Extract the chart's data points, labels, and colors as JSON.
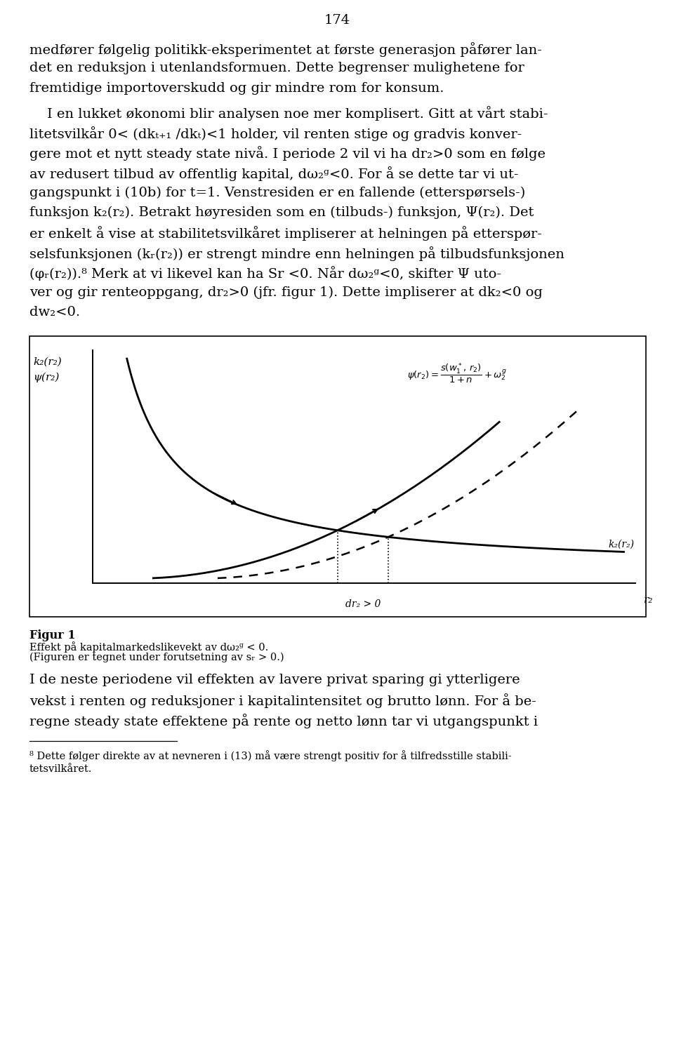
{
  "page_number": "174",
  "background_color": "#ffffff",
  "text_color": "#000000",
  "para1_lines": [
    "medfører følgelig politikk-eksperimentet at første generasjon påfører lan-",
    "det en reduksjon i utenlandsformuen. Dette begrenser mulighetene for",
    "fremtidige importoverskudd og gir mindre rom for konsum."
  ],
  "para2_lines": [
    "    I en lukket økonomi blir analysen noe mer komplisert. Gitt at vårt stabi-",
    "litetsvilkår 0< (dkₜ₊₁ /dkₜ)<1 holder, vil renten stige og gradvis konver-",
    "gere mot et nytt steady state nivå. I periode 2 vil vi ha dr₂>0 som en følge",
    "av redusert tilbud av offentlig kapital, dω₂ᵍ<0. For å se dette tar vi ut-",
    "gangspunkt i (10b) for t=1. Venstresiden er en fallende (etterspørsels-)",
    "funksjon k₂(r₂). Betrakt høyresiden som en (tilbuds-) funksjon, Ψ(r₂). Det",
    "er enkelt å vise at stabilitetsvilkåret impliserer at helningen på etterspør-",
    "selsfunksjonen (kᵣ(r₂)) er strengt mindre enn helningen på tilbudsfunksjonen",
    "(φᵣ(r₂)).⁸ Merk at vi likevel kan ha Sr <0. Når dω₂ᵍ<0, skifter Ψ uto-",
    "ver og gir renteoppgang, dr₂>0 (jfr. figur 1). Dette impliserer at dk₂<0 og",
    "dw₂<0."
  ],
  "para3_lines": [
    "I de neste periodene vil effekten av lavere privat sparing gi ytterligere",
    "vekst i renten og reduksjoner i kapitalintensitet og brutto lønn. For å be-",
    "regne steady state effektene på rente og netto lønn tar vi utgangspunkt i"
  ],
  "footnote_lines": [
    "⁸ Dette følger direkte av at nevneren i (13) må være strengt positiv for å tilfredsstille stabili-",
    "tetsvilkåret."
  ],
  "fig_caption_bold": "Figur 1",
  "fig_caption1": "Effekt på kapitalmarkedslikevekt av dω₂ᵍ < 0.",
  "fig_caption2": "(Figuren er tegnet under forutsetning av sᵣ > 0.)",
  "yaxis_label1": "k₂(r₂)",
  "yaxis_label2": "ψ(r₂)",
  "xaxis_label": "r₂",
  "xaxis_annotation": "dr₂ > 0",
  "curve_k2_label": "k₂(r₂)"
}
